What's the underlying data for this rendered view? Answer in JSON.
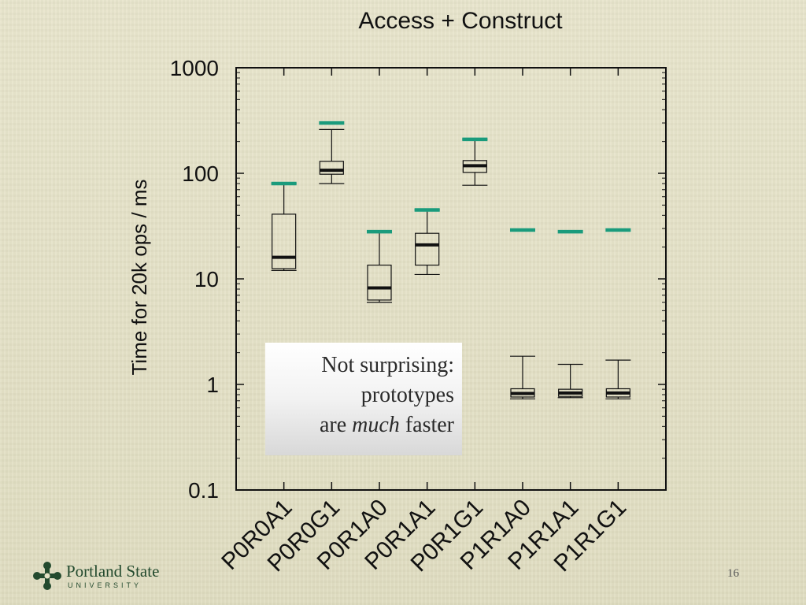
{
  "chart_data": {
    "type": "box",
    "title": "Access + Construct",
    "xlabel": "",
    "ylabel": "Time for 20k ops / ms",
    "yscale": "log",
    "ylim": [
      0.1,
      1000
    ],
    "yticks": [
      {
        "value": 0.1,
        "label": "0.1"
      },
      {
        "value": 1,
        "label": "1"
      },
      {
        "value": 10,
        "label": "10"
      },
      {
        "value": 100,
        "label": "100"
      },
      {
        "value": 1000,
        "label": "1000"
      }
    ],
    "categories": [
      "P0R0A1",
      "P0R0G1",
      "P0R1A0",
      "P0R1A1",
      "P0R1G1",
      "P1R1A0",
      "P1R1A1",
      "P1R1G1"
    ],
    "boxes": [
      {
        "min": 12,
        "q1": 12.5,
        "median": 16,
        "q3": 41,
        "max": 80,
        "marker": 80
      },
      {
        "min": 80,
        "q1": 98,
        "median": 107,
        "q3": 130,
        "max": 260,
        "marker": 300
      },
      {
        "min": 6,
        "q1": 6.3,
        "median": 8.2,
        "q3": 13.5,
        "max": 28,
        "marker": 28
      },
      {
        "min": 11,
        "q1": 13.5,
        "median": 21,
        "q3": 27,
        "max": 45,
        "marker": 45
      },
      {
        "min": 77,
        "q1": 102,
        "median": 118,
        "q3": 132,
        "max": 210,
        "marker": 210
      },
      {
        "min": 0.73,
        "q1": 0.76,
        "median": 0.82,
        "q3": 0.91,
        "max": 1.85,
        "marker": 29
      },
      {
        "min": 0.75,
        "q1": 0.77,
        "median": 0.83,
        "q3": 0.9,
        "max": 1.55,
        "marker": 28
      },
      {
        "min": 0.73,
        "q1": 0.76,
        "median": 0.83,
        "q3": 0.91,
        "max": 1.7,
        "marker": 29
      }
    ],
    "marker_color": "#1a9b7c",
    "grid": false
  },
  "callout": {
    "line1": "Not surprising:",
    "line2": "prototypes",
    "line3_pre": "are ",
    "line3_em": "much",
    "line3_post": " faster"
  },
  "logo": {
    "name": "Portland State",
    "sub": "UNIVERSITY"
  },
  "page_number": "16"
}
